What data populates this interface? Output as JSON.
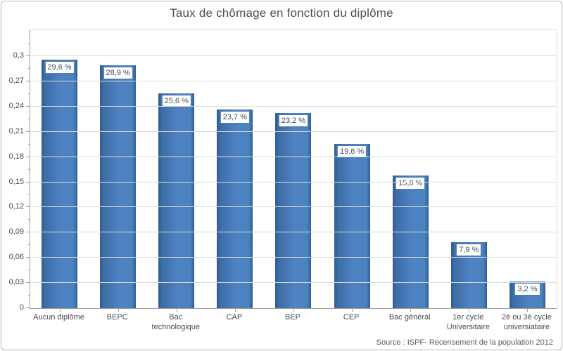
{
  "title": "Taux de chômage en fonction du diplôme",
  "source": "Source : ISPF- Recensement de la population 2012",
  "colors": {
    "bar_fill_main": "#4e83c3",
    "bar_fill_edge": "#2e5c90",
    "label_box_border": "#4a79b5",
    "label_text": "#3f4e63",
    "gridline": "#dcdcdc",
    "axis_line": "#9e9e9e",
    "axis_text": "#4a4a4a",
    "title_text": "#4e4e4e",
    "background": "#ffffff"
  },
  "chart_data": {
    "type": "bar",
    "title": "Taux de chômage en fonction du diplôme",
    "xlabel": "",
    "ylabel": "",
    "categories": [
      "Aucun diplôme",
      "BEPC",
      "Bac technologique",
      "CAP",
      "BEP",
      "CEP",
      "Bac général",
      "1er cycle Universitaire",
      "2è ou 3è cycle universiataire"
    ],
    "values": [
      0.296,
      0.289,
      0.256,
      0.237,
      0.232,
      0.196,
      0.158,
      0.079,
      0.032
    ],
    "value_labels": [
      "29,6 %",
      "28,9 %",
      "25,6 %",
      "23,7 %",
      "23,2 %",
      "19,6 %",
      "15,8 %",
      "7,9 %",
      "3,2 %"
    ],
    "y_tick_labels": [
      "0",
      "0,03",
      "0,06",
      "0,09",
      "0,12",
      "0,15",
      "0,18",
      "0,21",
      "0,24",
      "0,27",
      "0,3"
    ],
    "y_major_step": 0.03,
    "y_minor_step": 0.015,
    "ylim": [
      0,
      0.331
    ],
    "grid": true,
    "legend": false,
    "source_note": "Source : ISPF- Recensement de la population 2012"
  }
}
